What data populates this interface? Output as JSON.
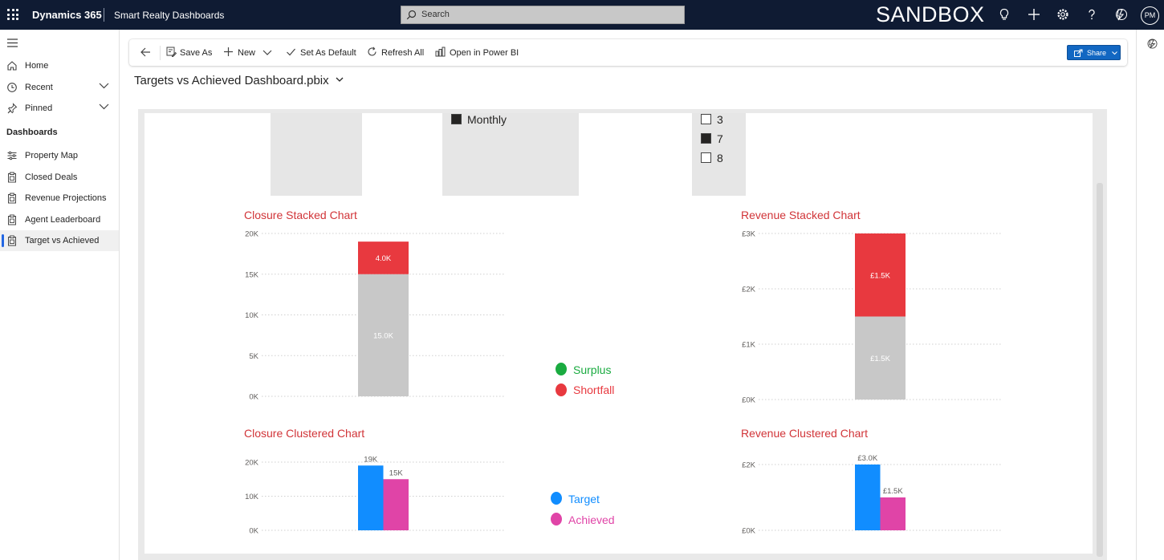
{
  "topbar": {
    "app_name": "Dynamics 365",
    "app_sub": "Smart Realty Dashboards",
    "search_placeholder": "Search",
    "environment": "SANDBOX",
    "avatar": "PM",
    "background": "#0f1b33"
  },
  "nav": {
    "items": [
      {
        "label": "Home",
        "icon": "home-icon"
      },
      {
        "label": "Recent",
        "icon": "clock-icon"
      },
      {
        "label": "Pinned",
        "icon": "pin-icon"
      }
    ],
    "section_heading": "Dashboards",
    "dashboards": [
      {
        "label": "Property Map",
        "icon": "map-settings-icon"
      },
      {
        "label": "Closed Deals",
        "icon": "clipboard-icon"
      },
      {
        "label": "Revenue Projections",
        "icon": "clipboard-icon"
      },
      {
        "label": "Agent Leaderboard",
        "icon": "clipboard-icon"
      },
      {
        "label": "Target vs Achieved",
        "icon": "clipboard-icon",
        "active": true
      }
    ]
  },
  "commands": {
    "save_as": "Save As",
    "new": "New",
    "set_default": "Set As Default",
    "refresh": "Refresh All",
    "open_pbi": "Open in Power BI",
    "share": "Share"
  },
  "page": {
    "title": "Targets vs Achieved Dashboard.pbix"
  },
  "slicers": {
    "period": {
      "label": "Monthly",
      "checked": true
    },
    "options": [
      {
        "label": "3",
        "checked": false
      },
      {
        "label": "7",
        "checked": true
      },
      {
        "label": "8",
        "checked": false
      }
    ]
  },
  "legends": {
    "status": [
      {
        "label": "Surplus",
        "color": "#1aab40"
      },
      {
        "label": "Shortfall",
        "color": "#e8393f"
      }
    ],
    "measures": [
      {
        "label": "Target",
        "color": "#118dff"
      },
      {
        "label": "Achieved",
        "color": "#e044a7"
      }
    ]
  },
  "chart_data": [
    {
      "type": "bar",
      "title": "Closure Stacked Chart",
      "stacked": true,
      "yticks": [
        "0K",
        "5K",
        "10K",
        "15K",
        "20K"
      ],
      "ylim": [
        0,
        20000
      ],
      "series": [
        {
          "values": [
            15000
          ],
          "label": "15.0K",
          "color": "#c8c8c8"
        },
        {
          "values": [
            4000
          ],
          "label": "4.0K",
          "color": "#e8393f"
        }
      ]
    },
    {
      "type": "bar",
      "title": "Revenue Stacked Chart",
      "stacked": true,
      "yticks": [
        "£0K",
        "£1K",
        "£2K",
        "£3K"
      ],
      "ylim": [
        0,
        3000
      ],
      "series": [
        {
          "values": [
            1500
          ],
          "label": "£1.5K",
          "color": "#c8c8c8"
        },
        {
          "values": [
            1500
          ],
          "label": "£1.5K",
          "color": "#e8393f"
        }
      ]
    },
    {
      "type": "bar",
      "title": "Closure Clustered Chart",
      "stacked": false,
      "yticks": [
        "0K",
        "10K",
        "20K"
      ],
      "ylim": [
        0,
        20000
      ],
      "series": [
        {
          "name": "Target",
          "values": [
            19000
          ],
          "label": "19K",
          "color": "#118dff"
        },
        {
          "name": "Achieved",
          "values": [
            15000
          ],
          "label": "15K",
          "color": "#e044a7"
        }
      ]
    },
    {
      "type": "bar",
      "title": "Revenue Clustered Chart",
      "stacked": false,
      "yticks": [
        "£0K",
        "£2K"
      ],
      "ylim": [
        0,
        3000
      ],
      "series": [
        {
          "name": "Target",
          "values": [
            3000
          ],
          "label": "£3.0K",
          "color": "#118dff"
        },
        {
          "name": "Achieved",
          "values": [
            1500
          ],
          "label": "£1.5K",
          "color": "#e044a7"
        }
      ]
    }
  ]
}
